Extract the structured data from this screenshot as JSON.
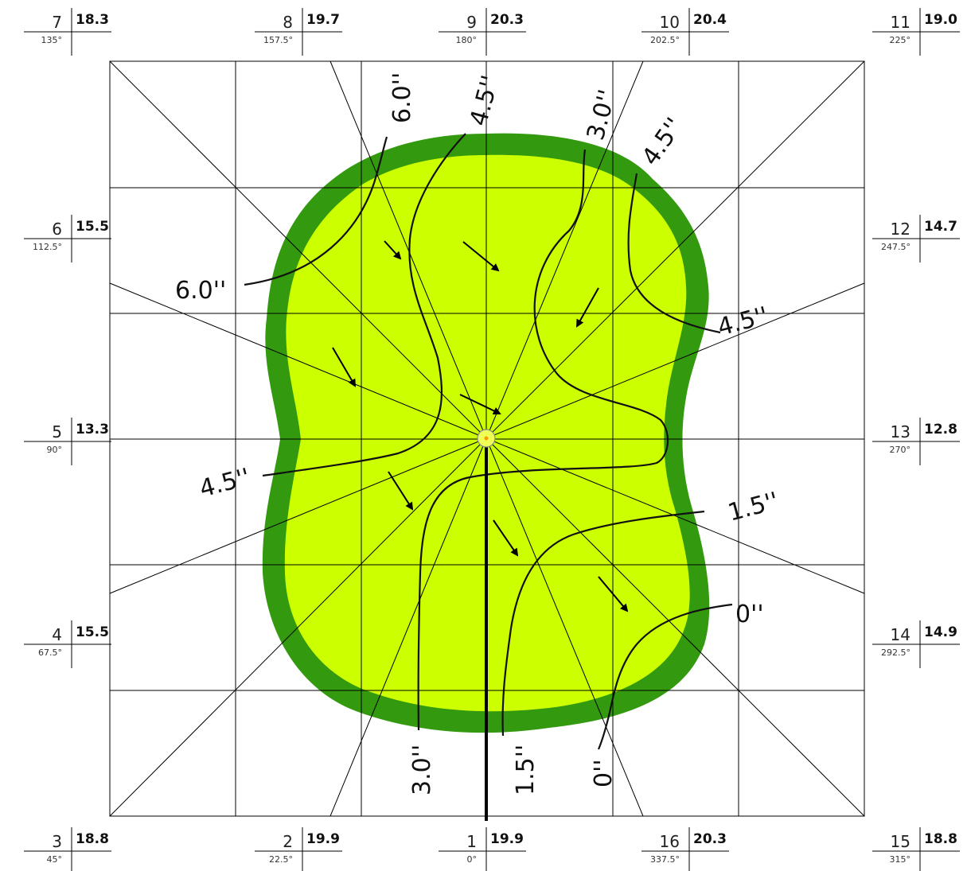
{
  "colors": {
    "fringe": "#339a0f",
    "green": "#ccff00",
    "line": "#111111",
    "grid": "#000000",
    "hole_fill": "#eeff55",
    "hole_dot": "#ff9900"
  },
  "stations": [
    {
      "num": "1",
      "speed": "19.9",
      "angle": "0°"
    },
    {
      "num": "2",
      "speed": "19.9",
      "angle": "22.5°"
    },
    {
      "num": "3",
      "speed": "18.8",
      "angle": "45°"
    },
    {
      "num": "4",
      "speed": "15.5",
      "angle": "67.5°"
    },
    {
      "num": "5",
      "speed": "13.3",
      "angle": "90°"
    },
    {
      "num": "6",
      "speed": "15.5",
      "angle": "112.5°"
    },
    {
      "num": "7",
      "speed": "18.3",
      "angle": "135°"
    },
    {
      "num": "8",
      "speed": "19.7",
      "angle": "157.5°"
    },
    {
      "num": "9",
      "speed": "20.3",
      "angle": "180°"
    },
    {
      "num": "10",
      "speed": "20.4",
      "angle": "202.5°"
    },
    {
      "num": "11",
      "speed": "19.0",
      "angle": "225°"
    },
    {
      "num": "12",
      "speed": "14.7",
      "angle": "247.5°"
    },
    {
      "num": "13",
      "speed": "12.8",
      "angle": "270°"
    },
    {
      "num": "14",
      "speed": "14.9",
      "angle": "292.5°"
    },
    {
      "num": "15",
      "speed": "18.8",
      "angle": "315°"
    },
    {
      "num": "16",
      "speed": "20.3",
      "angle": "337.5°"
    }
  ],
  "contour_labels": [
    {
      "id": "top-6",
      "text": "6.0''"
    },
    {
      "id": "top-4-5",
      "text": "4.5''"
    },
    {
      "id": "top-3",
      "text": "3.0''"
    },
    {
      "id": "top-4-5b",
      "text": "4.5''"
    },
    {
      "id": "left-6",
      "text": "6.0''"
    },
    {
      "id": "left-4-5",
      "text": "4.5''"
    },
    {
      "id": "right-4-5",
      "text": "4.5''"
    },
    {
      "id": "right-1-5",
      "text": "1.5''"
    },
    {
      "id": "right-0",
      "text": "0''"
    },
    {
      "id": "bot-3",
      "text": "3.0''"
    },
    {
      "id": "bot-1-5",
      "text": "1.5''"
    },
    {
      "id": "bot-0",
      "text": "0''"
    }
  ]
}
